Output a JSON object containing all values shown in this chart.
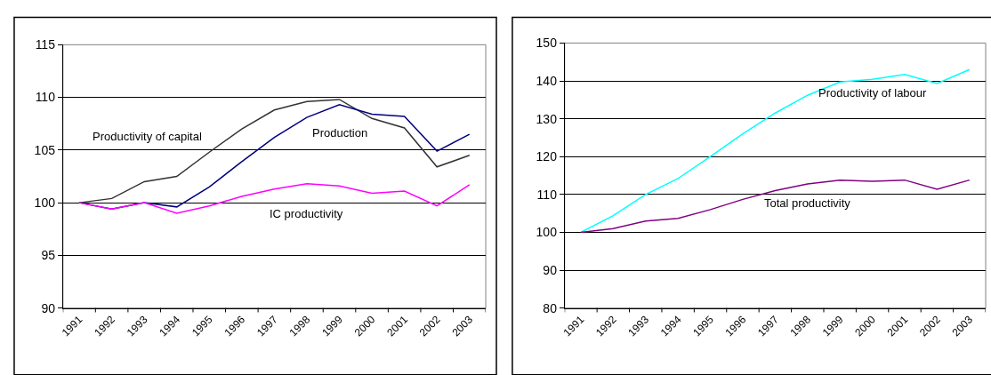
{
  "chart_data": [
    {
      "type": "line",
      "categories": [
        "1991",
        "1992",
        "1993",
        "1994",
        "1995",
        "1996",
        "1997",
        "1998",
        "1999",
        "2000",
        "2001",
        "2002",
        "2003"
      ],
      "series": [
        {
          "name": "Productivity of capital",
          "color": "#333333",
          "values": [
            100,
            100.4,
            102,
            102.5,
            104.8,
            107,
            108.8,
            109.6,
            109.8,
            108,
            107.1,
            103.4,
            104.5
          ]
        },
        {
          "name": "Production",
          "color": "#000080",
          "values": [
            100,
            99.4,
            100,
            99.6,
            101.5,
            103.9,
            106.2,
            108.1,
            109.3,
            108.4,
            108.2,
            104.9,
            106.5
          ]
        },
        {
          "name": "IC productivity",
          "color": "#ff00ff",
          "values": [
            100,
            99.4,
            100,
            99,
            99.7,
            100.6,
            101.3,
            101.8,
            101.6,
            100.9,
            101.1,
            99.7,
            101.7
          ]
        }
      ],
      "ylim": [
        90,
        115
      ],
      "yticks": [
        90,
        95,
        100,
        105,
        110,
        115
      ],
      "grid": "y",
      "marker": "none",
      "line_style": "solid"
    },
    {
      "type": "line",
      "categories": [
        "1991",
        "1992",
        "1993",
        "1994",
        "1995",
        "1996",
        "1997",
        "1998",
        "1999",
        "2000",
        "2001",
        "2002",
        "2003"
      ],
      "series": [
        {
          "name": "Productivity of labour",
          "color": "#00ffff",
          "values": [
            100,
            104.4,
            110,
            114.2,
            120,
            126,
            131.5,
            136.2,
            139.7,
            140.4,
            141.7,
            139.3,
            143
          ]
        },
        {
          "name": "Total productivity",
          "color": "#800080",
          "values": [
            100,
            101,
            103,
            103.7,
            106,
            108.7,
            111,
            112.8,
            113.8,
            113.5,
            113.8,
            111.4,
            113.8
          ]
        }
      ],
      "ylim": [
        80,
        150
      ],
      "yticks": [
        80,
        90,
        100,
        110,
        120,
        130,
        140,
        150
      ],
      "grid": "y",
      "marker": "none",
      "line_style": "solid"
    }
  ]
}
